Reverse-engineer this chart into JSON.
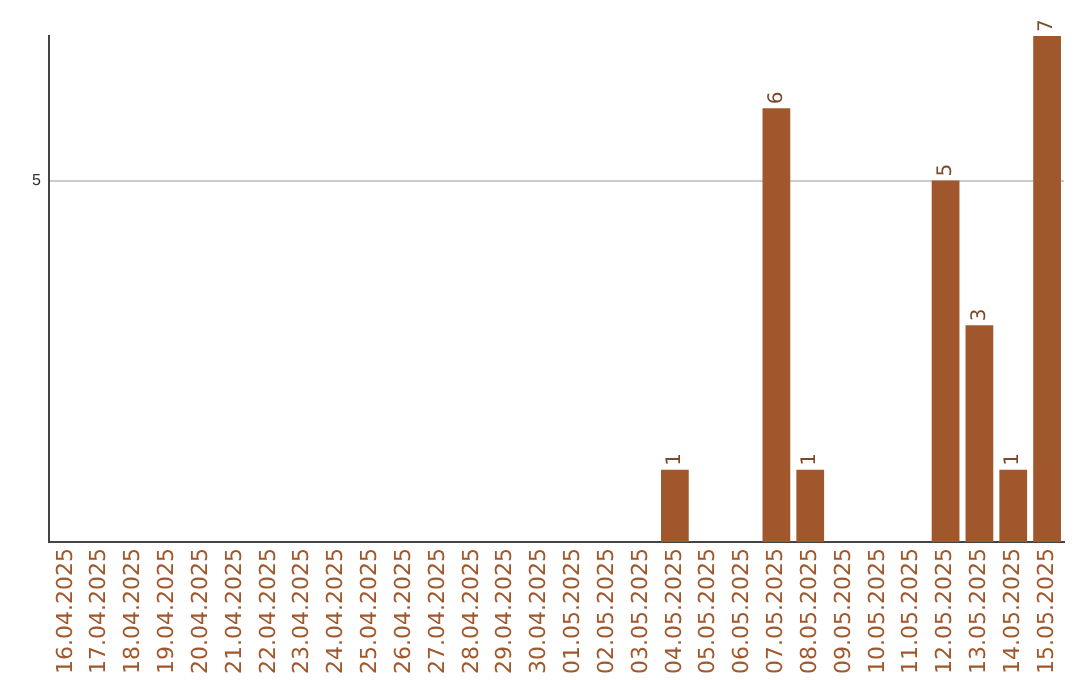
{
  "chart_data": {
    "type": "bar",
    "categories": [
      "16.04.2025",
      "17.04.2025",
      "18.04.2025",
      "19.04.2025",
      "20.04.2025",
      "21.04.2025",
      "22.04.2025",
      "23.04.2025",
      "24.04.2025",
      "25.04.2025",
      "26.04.2025",
      "27.04.2025",
      "28.04.2025",
      "29.04.2025",
      "30.04.2025",
      "01.05.2025",
      "02.05.2025",
      "03.05.2025",
      "04.05.2025",
      "05.05.2025",
      "06.05.2025",
      "07.05.2025",
      "08.05.2025",
      "09.05.2025",
      "10.05.2025",
      "11.05.2025",
      "12.05.2025",
      "13.05.2025",
      "14.05.2025",
      "15.05.2025"
    ],
    "values": [
      null,
      null,
      null,
      null,
      null,
      null,
      null,
      null,
      null,
      null,
      null,
      null,
      null,
      null,
      null,
      null,
      null,
      null,
      1,
      null,
      null,
      6,
      1,
      null,
      null,
      null,
      5,
      3,
      1,
      7
    ],
    "data_labels": true,
    "color": "#a0572b",
    "ylim": [
      0,
      7
    ],
    "yticks": [
      5
    ],
    "grid": "y",
    "legend": false
  }
}
